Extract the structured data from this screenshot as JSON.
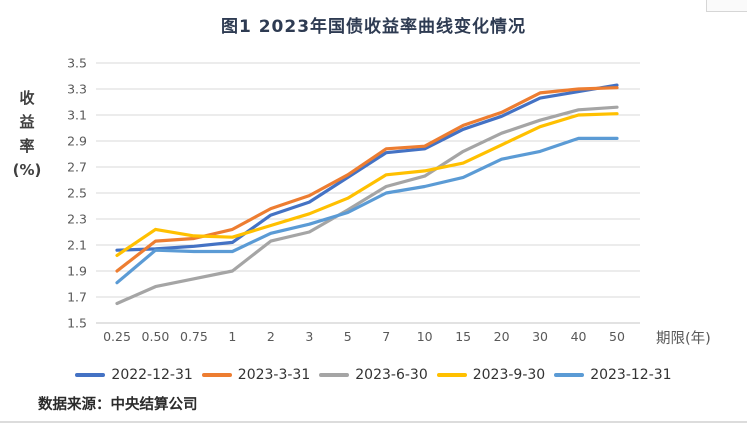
{
  "page": {
    "source_note": "数据来源：中央结算公司"
  },
  "colors": {
    "grid": "#d9d9d9",
    "axis_line": "#c4c4c4",
    "tick_text": "#595959",
    "title_text": "#2e3b52",
    "legend_text": "#333333"
  },
  "chart_data": {
    "type": "line",
    "title": "图1 2023年国债收益率曲线变化情况",
    "ylabel": "收益率(%)",
    "ylabel_display": "收\n益\n率\n(%)",
    "xlabel": "期限(年)",
    "categories": [
      "0.25",
      "0.50",
      "0.75",
      "1",
      "2",
      "3",
      "5",
      "7",
      "10",
      "15",
      "20",
      "30",
      "40",
      "50"
    ],
    "ylim": [
      1.5,
      3.5
    ],
    "ytick_step": 0.2,
    "grid": true,
    "legend_position": "bottom",
    "series": [
      {
        "name": "2022-12-31",
        "color": "#4472C4",
        "values": [
          2.06,
          2.07,
          2.09,
          2.12,
          2.33,
          2.43,
          2.62,
          2.81,
          2.84,
          2.99,
          3.09,
          3.23,
          3.28,
          3.33
        ]
      },
      {
        "name": "2023-3-31",
        "color": "#ED7D31",
        "values": [
          1.9,
          2.13,
          2.15,
          2.22,
          2.38,
          2.48,
          2.64,
          2.84,
          2.86,
          3.02,
          3.12,
          3.27,
          3.3,
          3.31
        ]
      },
      {
        "name": "2023-6-30",
        "color": "#A5A5A5",
        "values": [
          1.65,
          1.78,
          1.84,
          1.9,
          2.13,
          2.2,
          2.37,
          2.55,
          2.63,
          2.82,
          2.96,
          3.06,
          3.14,
          3.16
        ]
      },
      {
        "name": "2023-9-30",
        "color": "#FFC000",
        "values": [
          2.02,
          2.22,
          2.17,
          2.16,
          2.25,
          2.34,
          2.46,
          2.64,
          2.67,
          2.73,
          2.87,
          3.01,
          3.1,
          3.11
        ]
      },
      {
        "name": "2023-12-31",
        "color": "#5B9BD5",
        "values": [
          1.81,
          2.06,
          2.05,
          2.05,
          2.19,
          2.26,
          2.35,
          2.5,
          2.55,
          2.62,
          2.76,
          2.82,
          2.92,
          2.92
        ]
      }
    ]
  }
}
